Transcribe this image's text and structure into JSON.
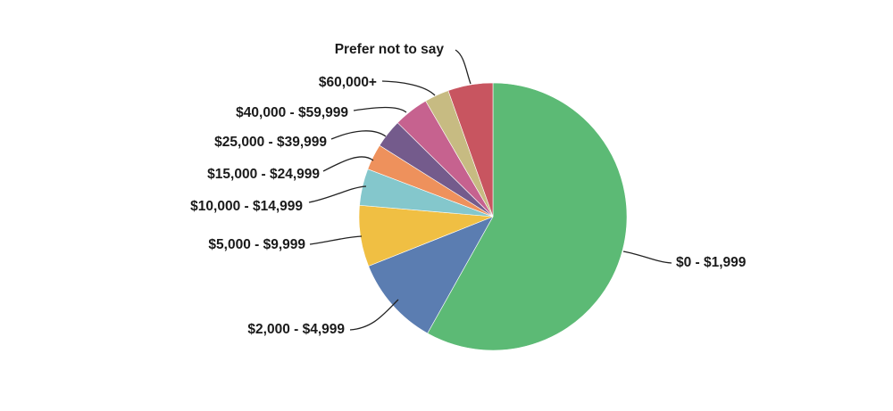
{
  "chart_data": {
    "type": "pie",
    "title": "",
    "slices": [
      {
        "label": "$0 - $1,999",
        "value": 59,
        "color": "#5cba75"
      },
      {
        "label": "$2,000 - $4,999",
        "value": 11,
        "color": "#5b7db1"
      },
      {
        "label": "$5,000 - $9,999",
        "value": 7.5,
        "color": "#f0bf43"
      },
      {
        "label": "$10,000 - $14,999",
        "value": 4.5,
        "color": "#84c7cc"
      },
      {
        "label": "$15,000 - $24,999",
        "value": 3.2,
        "color": "#ee915c"
      },
      {
        "label": "$25,000 - $39,999",
        "value": 3.5,
        "color": "#745b8c"
      },
      {
        "label": "$40,000 - $59,999",
        "value": 4.3,
        "color": "#c6628f"
      },
      {
        "label": "$60,000+",
        "value": 3.0,
        "color": "#c7bb82"
      },
      {
        "label": "Prefer not to say",
        "value": 5.5,
        "color": "#c85560"
      }
    ]
  }
}
